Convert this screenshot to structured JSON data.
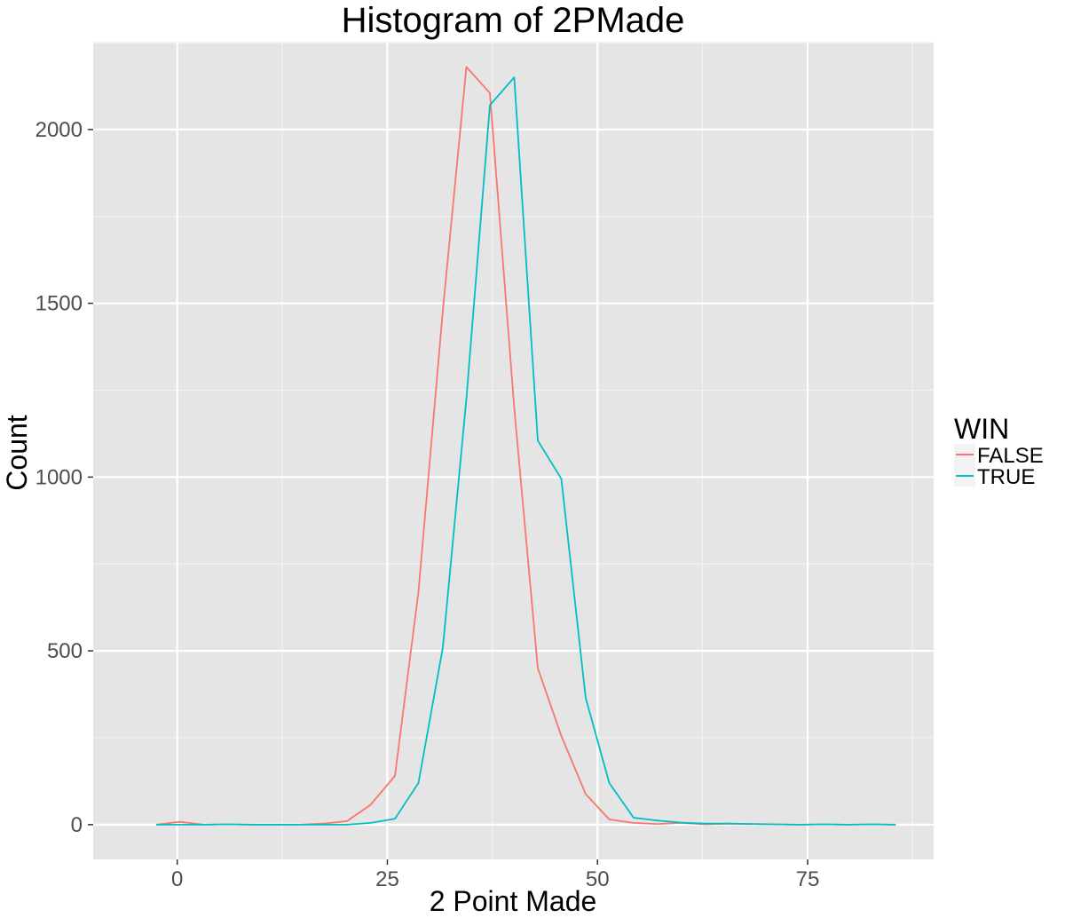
{
  "chart_data": {
    "type": "line",
    "title": "Histogram of 2PMade",
    "xlabel": "2 Point Made",
    "ylabel": "Count",
    "xlim": [
      -10,
      90
    ],
    "ylim": [
      -100,
      2250
    ],
    "x_ticks": [
      0,
      25,
      50,
      75
    ],
    "x_tick_labels": [
      "0",
      "25",
      "50",
      "75"
    ],
    "y_ticks": [
      0,
      500,
      1000,
      1500,
      2000
    ],
    "y_tick_labels": [
      "0",
      "500",
      "1000",
      "1500",
      "2000"
    ],
    "grid": true,
    "legend": {
      "title": "WIN",
      "position": "right"
    },
    "x": [
      -2.5,
      0.3,
      3.2,
      6.0,
      8.9,
      11.7,
      14.5,
      17.4,
      20.2,
      23.0,
      25.9,
      28.7,
      31.6,
      34.4,
      37.2,
      40.1,
      42.9,
      45.7,
      48.6,
      51.4,
      54.3,
      57.1,
      59.9,
      62.8,
      65.6,
      68.4,
      71.3,
      74.1,
      77.0,
      79.8,
      82.6,
      85.5
    ],
    "series": [
      {
        "name": "FALSE",
        "color": "#f8766d",
        "values": [
          0,
          8,
          0,
          1,
          0,
          0,
          0,
          3,
          10,
          57,
          140,
          670,
          1480,
          2180,
          2105,
          1200,
          450,
          255,
          88,
          15,
          5,
          2,
          5,
          1,
          3,
          2,
          1,
          0,
          1,
          0,
          1,
          0
        ]
      },
      {
        "name": "TRUE",
        "color": "#00bfc4",
        "values": [
          0,
          0,
          0,
          1,
          0,
          0,
          0,
          0,
          0,
          5,
          17,
          120,
          510,
          1225,
          2070,
          2150,
          1105,
          995,
          365,
          120,
          20,
          12,
          6,
          3,
          3,
          2,
          1,
          0,
          1,
          0,
          1,
          0
        ]
      }
    ]
  }
}
